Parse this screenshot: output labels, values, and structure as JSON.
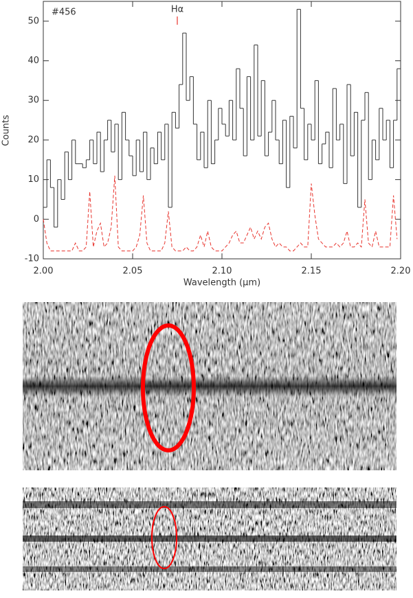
{
  "chart_data": {
    "type": "line",
    "ylabel": "Counts",
    "xlabel": "Wavelength (μm)",
    "annotations": [
      {
        "text": "#456"
      },
      {
        "text": "Hα",
        "x": 2.075,
        "color": "#e8332c"
      }
    ],
    "xlim": [
      2.0,
      2.2
    ],
    "ylim": [
      -10,
      55
    ],
    "xticks": [
      {
        "value": 2.0,
        "label": "2.00"
      },
      {
        "value": 2.05,
        "label": "2.05"
      },
      {
        "value": 2.1,
        "label": "2.10"
      },
      {
        "value": 2.15,
        "label": "2.15"
      },
      {
        "value": 2.2,
        "label": "2.20"
      }
    ],
    "yticks": [
      -10,
      0,
      10,
      20,
      30,
      40,
      50
    ],
    "x": [
      2.0,
      2.002,
      2.004,
      2.006,
      2.008,
      2.01,
      2.012,
      2.014,
      2.016,
      2.018,
      2.02,
      2.022,
      2.024,
      2.026,
      2.028,
      2.03,
      2.032,
      2.034,
      2.036,
      2.038,
      2.04,
      2.042,
      2.044,
      2.046,
      2.048,
      2.05,
      2.052,
      2.054,
      2.056,
      2.058,
      2.06,
      2.062,
      2.064,
      2.066,
      2.068,
      2.07,
      2.072,
      2.074,
      2.076,
      2.078,
      2.08,
      2.082,
      2.084,
      2.086,
      2.088,
      2.09,
      2.092,
      2.094,
      2.096,
      2.098,
      2.1,
      2.102,
      2.104,
      2.106,
      2.108,
      2.11,
      2.112,
      2.114,
      2.116,
      2.118,
      2.12,
      2.122,
      2.124,
      2.126,
      2.128,
      2.13,
      2.132,
      2.134,
      2.136,
      2.138,
      2.14,
      2.142,
      2.144,
      2.146,
      2.148,
      2.15,
      2.152,
      2.154,
      2.156,
      2.158,
      2.16,
      2.162,
      2.164,
      2.166,
      2.168,
      2.17,
      2.172,
      2.174,
      2.176,
      2.178,
      2.18,
      2.182,
      2.184,
      2.186,
      2.188,
      2.19,
      2.192,
      2.194,
      2.196,
      2.198
    ],
    "series": [
      {
        "color": "#333333",
        "drawstyle": "steps",
        "values": [
          3,
          15,
          8,
          -2,
          10,
          5,
          17,
          10,
          20,
          14,
          14,
          13,
          15,
          20,
          14,
          22,
          12,
          20,
          25,
          17,
          24,
          10,
          27,
          20,
          16,
          11,
          20,
          12,
          22,
          10,
          18,
          14,
          22,
          15,
          24,
          3,
          27,
          23,
          34,
          47,
          30,
          36,
          24,
          15,
          22,
          13,
          30,
          14,
          20,
          28,
          24,
          21,
          30,
          20,
          38,
          28,
          16,
          36,
          20,
          44,
          21,
          35,
          16,
          22,
          30,
          20,
          14,
          25,
          8,
          26,
          18,
          53,
          28,
          15,
          24,
          20,
          35,
          14,
          19,
          22,
          13,
          33,
          20,
          24,
          9,
          34,
          16,
          27,
          3,
          25,
          32,
          10,
          20,
          15,
          28,
          20,
          25,
          13,
          25,
          38
        ]
      },
      {
        "color": "#e8332c",
        "linestyle": "dashed",
        "values": [
          0,
          -6,
          -8,
          -8,
          -8,
          -8,
          -8,
          -8,
          -8,
          -6,
          -8,
          -8,
          -7,
          7,
          -7,
          -3,
          -1,
          -7,
          -6,
          -2,
          11,
          -7,
          -8,
          -8,
          -8,
          -8,
          -7,
          -4,
          6,
          -6,
          -8,
          -8,
          -8,
          -8,
          -6,
          2,
          -7,
          -8,
          -8,
          -8,
          -7,
          -8,
          -8,
          -7,
          -4,
          -7,
          -3,
          -7,
          -8,
          -8,
          -8,
          -7,
          -6,
          -4,
          -3,
          -6,
          -6,
          -4,
          -2,
          -5,
          -3,
          -5,
          -2,
          -1,
          -5,
          -7,
          -6,
          -7,
          -7,
          -8,
          -8,
          -7,
          -6,
          -7,
          -7,
          9,
          1,
          -5,
          -6,
          -7,
          -7,
          -7,
          -6,
          -7,
          -6,
          -3,
          -7,
          -7,
          -6,
          -7,
          5,
          -6,
          -7,
          -3,
          -7,
          -7,
          -7,
          -7,
          6,
          -5
        ]
      }
    ]
  }
}
